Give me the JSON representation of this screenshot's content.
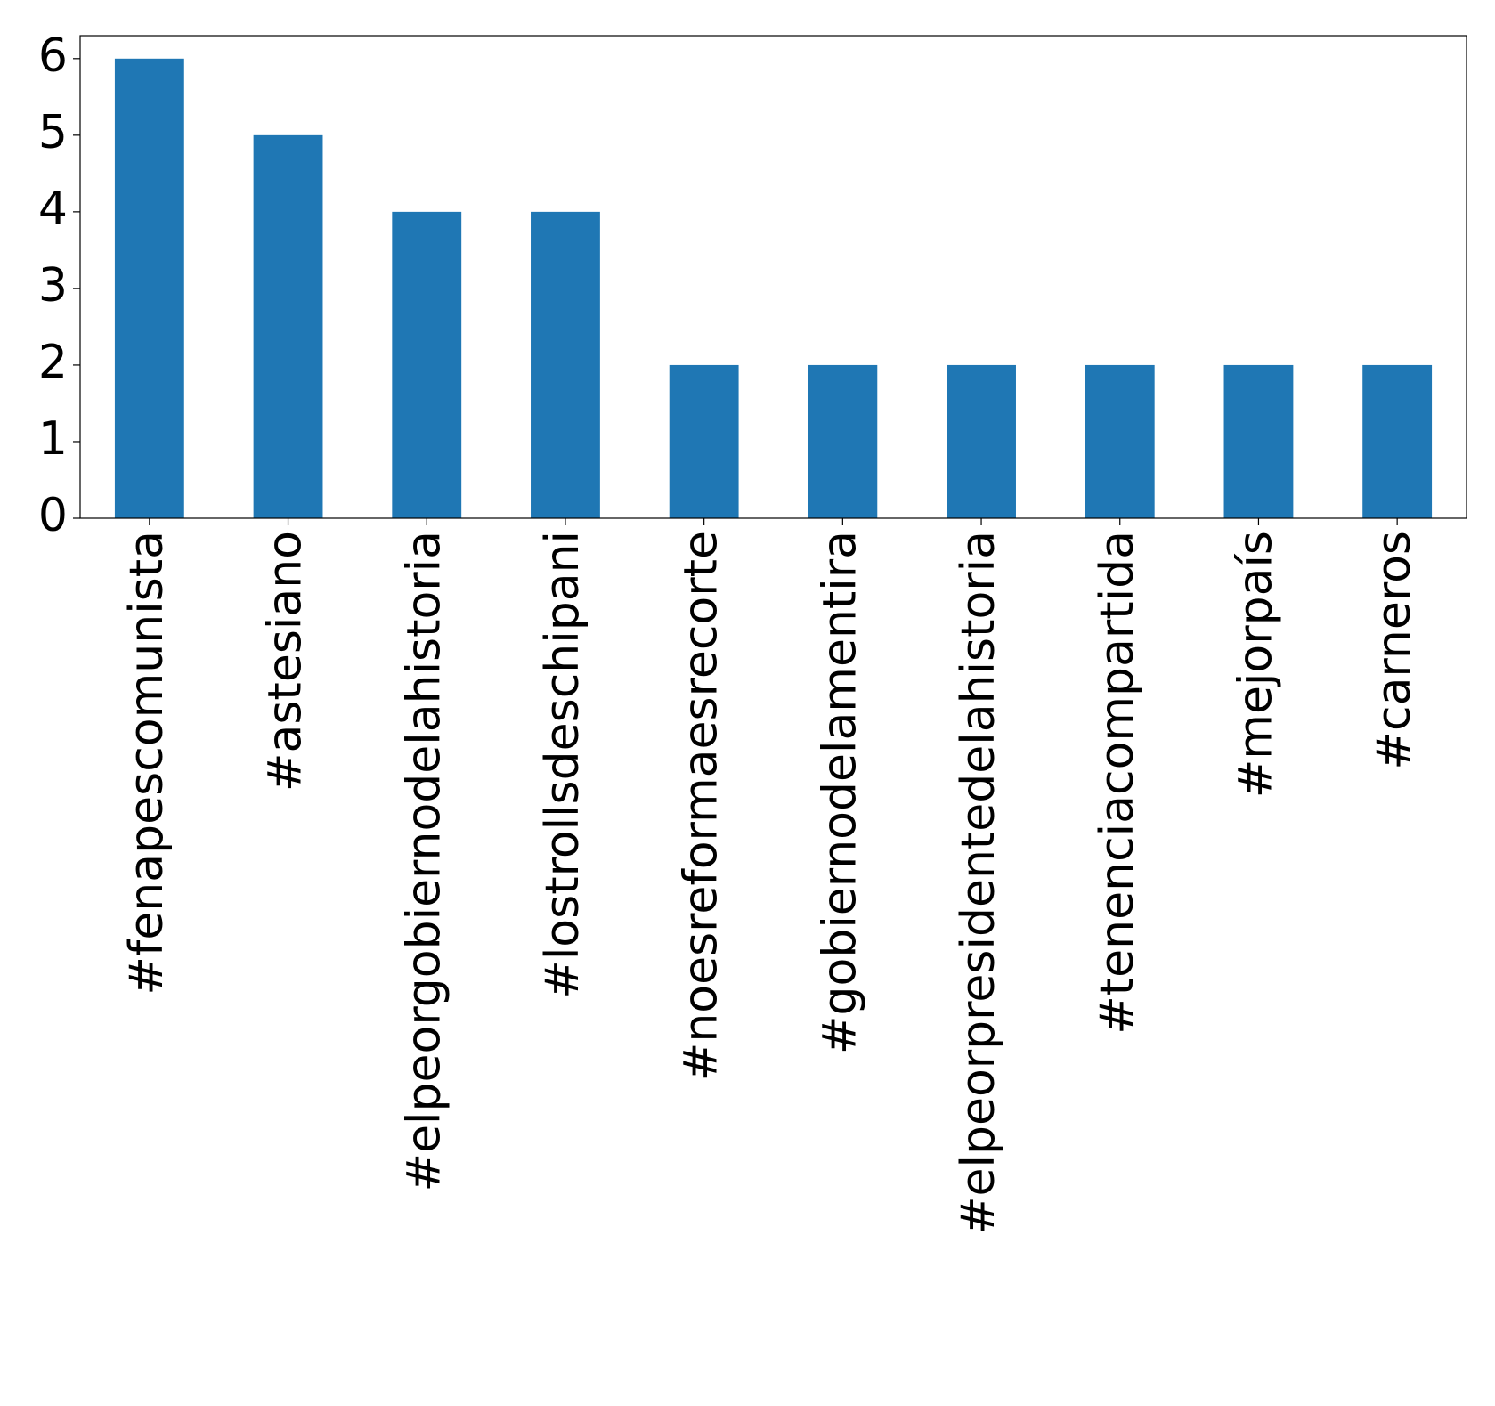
{
  "chart_data": {
    "type": "bar",
    "categories": [
      "#fenapescomunista",
      "#astesiano",
      "#elpeorgobiernodelahistoria",
      "#lostrollsdeschipani",
      "#noesreformaesrecorte",
      "#gobiernodelamentira",
      "#elpeorpresidentedelahistoria",
      "#tenenciacompartida",
      "#mejorpaís",
      "#carneros"
    ],
    "values": [
      6,
      5,
      4,
      4,
      2,
      2,
      2,
      2,
      2,
      2
    ],
    "color": "#1f77b4",
    "ylim": [
      0,
      6.3
    ],
    "yticks": [
      0,
      1,
      2,
      3,
      4,
      5,
      6
    ],
    "grid": false
  }
}
